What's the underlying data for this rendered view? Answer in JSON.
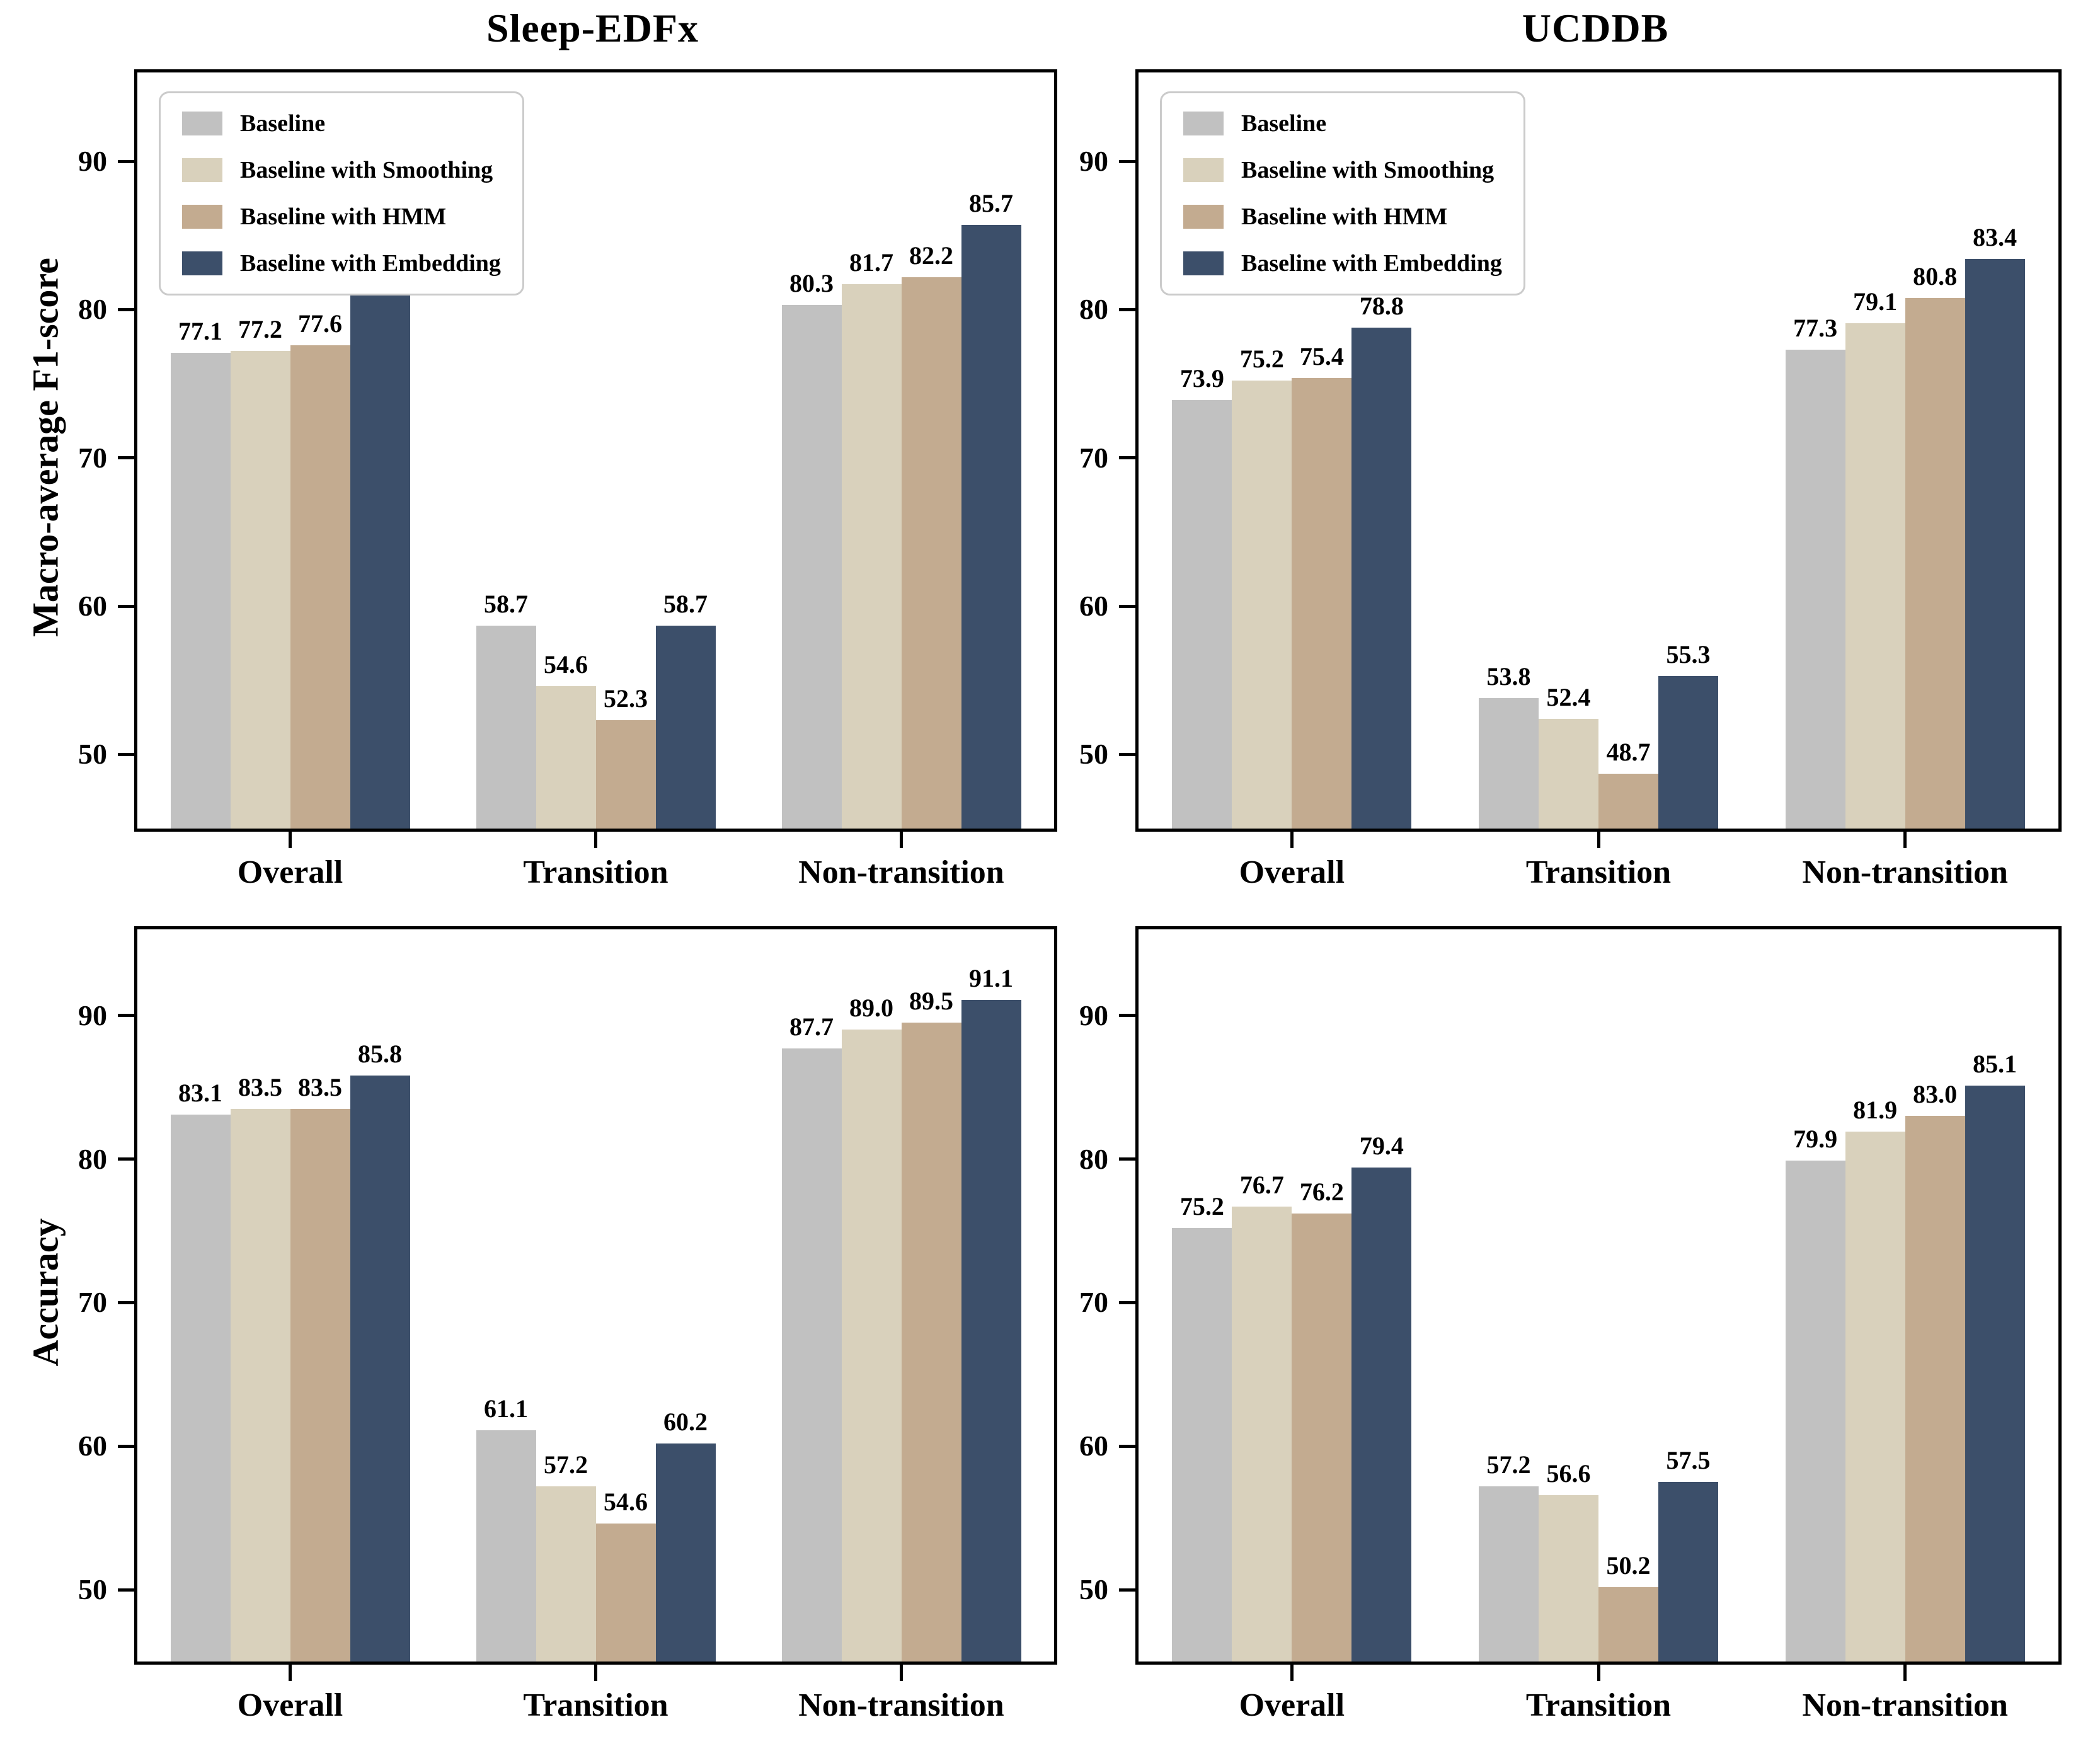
{
  "figure": {
    "column_titles": [
      "Sleep-EDFx",
      "UCDDB"
    ],
    "row_ylabels": [
      "Macro-average F1-score",
      "Accuracy"
    ],
    "background_color": "#ffffff",
    "axes_color": "#000000"
  },
  "legend": {
    "position": "upper left",
    "items": [
      {
        "label": "Baseline",
        "color": "#c1c1c1"
      },
      {
        "label": "Baseline with Smoothing",
        "color": "#d9d1bc"
      },
      {
        "label": "Baseline with HMM",
        "color": "#c3ab90"
      },
      {
        "label": "Baseline with Embedding",
        "color": "#3c4f6a"
      }
    ]
  },
  "chart_data": [
    {
      "type": "bar",
      "title": "Sleep-EDFx",
      "ylabel": "Macro-average F1-score",
      "categories": [
        "Overall",
        "Transition",
        "Non-transition"
      ],
      "series": [
        {
          "name": "Baseline",
          "color": "#c1c1c1",
          "values": [
            77.1,
            58.7,
            80.3
          ]
        },
        {
          "name": "Baseline with Smoothing",
          "color": "#d9d1bc",
          "values": [
            77.2,
            54.6,
            81.7
          ]
        },
        {
          "name": "Baseline with HMM",
          "color": "#c3ab90",
          "values": [
            77.6,
            52.3,
            82.2
          ]
        },
        {
          "name": "Baseline with Embedding",
          "color": "#3c4f6a",
          "values": [
            81.2,
            58.7,
            85.7
          ]
        }
      ],
      "ylim": [
        45,
        96
      ],
      "yticks": [
        50,
        60,
        70,
        80,
        90
      ],
      "grid": false,
      "legend_visible": true
    },
    {
      "type": "bar",
      "title": "UCDDB",
      "ylabel": "",
      "categories": [
        "Overall",
        "Transition",
        "Non-transition"
      ],
      "series": [
        {
          "name": "Baseline",
          "color": "#c1c1c1",
          "values": [
            73.9,
            53.8,
            77.3
          ]
        },
        {
          "name": "Baseline with Smoothing",
          "color": "#d9d1bc",
          "values": [
            75.2,
            52.4,
            79.1
          ]
        },
        {
          "name": "Baseline with HMM",
          "color": "#c3ab90",
          "values": [
            75.4,
            48.7,
            80.8
          ]
        },
        {
          "name": "Baseline with Embedding",
          "color": "#3c4f6a",
          "values": [
            78.8,
            55.3,
            83.4
          ]
        }
      ],
      "ylim": [
        45,
        96
      ],
      "yticks": [
        50,
        60,
        70,
        80,
        90
      ],
      "grid": false,
      "legend_visible": true
    },
    {
      "type": "bar",
      "title": "",
      "ylabel": "Accuracy",
      "categories": [
        "Overall",
        "Transition",
        "Non-transition"
      ],
      "series": [
        {
          "name": "Baseline",
          "color": "#c1c1c1",
          "values": [
            83.1,
            61.1,
            87.7
          ]
        },
        {
          "name": "Baseline with Smoothing",
          "color": "#d9d1bc",
          "values": [
            83.5,
            57.2,
            89.0
          ]
        },
        {
          "name": "Baseline with HMM",
          "color": "#c3ab90",
          "values": [
            83.5,
            54.6,
            89.5
          ]
        },
        {
          "name": "Baseline with Embedding",
          "color": "#3c4f6a",
          "values": [
            85.8,
            60.2,
            91.1
          ]
        }
      ],
      "ylim": [
        45,
        96
      ],
      "yticks": [
        50,
        60,
        70,
        80,
        90
      ],
      "grid": false,
      "legend_visible": false
    },
    {
      "type": "bar",
      "title": "",
      "ylabel": "",
      "categories": [
        "Overall",
        "Transition",
        "Non-transition"
      ],
      "series": [
        {
          "name": "Baseline",
          "color": "#c1c1c1",
          "values": [
            75.2,
            57.2,
            79.9
          ]
        },
        {
          "name": "Baseline with Smoothing",
          "color": "#d9d1bc",
          "values": [
            76.7,
            56.6,
            81.9
          ]
        },
        {
          "name": "Baseline with HMM",
          "color": "#c3ab90",
          "values": [
            76.2,
            50.2,
            83.0
          ]
        },
        {
          "name": "Baseline with Embedding",
          "color": "#3c4f6a",
          "values": [
            79.4,
            57.5,
            85.1
          ]
        }
      ],
      "ylim": [
        45,
        96
      ],
      "yticks": [
        50,
        60,
        70,
        80,
        90
      ],
      "grid": false,
      "legend_visible": false
    }
  ]
}
